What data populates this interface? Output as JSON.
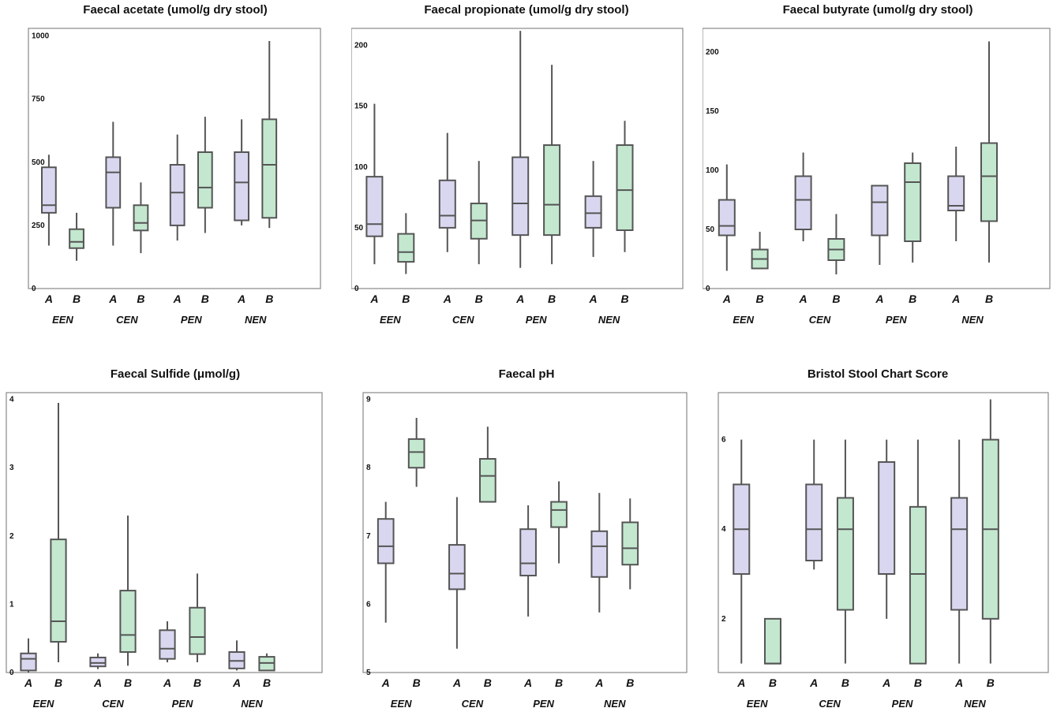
{
  "colors": {
    "A": "#d9d7f0",
    "B": "#c3e8cf",
    "stroke": "#555555",
    "frame": "#888888"
  },
  "chart_data": [
    {
      "type": "box",
      "title": "Faecal acetate (umol/g dry stool)",
      "yticks": [
        "0",
        "250",
        "500",
        "750",
        "1000"
      ],
      "ylim": [
        0,
        1030
      ],
      "groups": [
        "EEN",
        "CEN",
        "PEN",
        "NEN"
      ],
      "subgroups": [
        "A",
        "B"
      ],
      "boxes": [
        {
          "group": "EEN",
          "sub": "A",
          "min": 170,
          "q1": 300,
          "median": 330,
          "q3": 480,
          "max": 530
        },
        {
          "group": "EEN",
          "sub": "B",
          "min": 110,
          "q1": 160,
          "median": 185,
          "q3": 235,
          "max": 300
        },
        {
          "group": "CEN",
          "sub": "A",
          "min": 170,
          "q1": 320,
          "median": 460,
          "q3": 520,
          "max": 660
        },
        {
          "group": "CEN",
          "sub": "B",
          "min": 140,
          "q1": 230,
          "median": 260,
          "q3": 330,
          "max": 420
        },
        {
          "group": "PEN",
          "sub": "A",
          "min": 190,
          "q1": 250,
          "median": 380,
          "q3": 490,
          "max": 610
        },
        {
          "group": "PEN",
          "sub": "B",
          "min": 220,
          "q1": 320,
          "median": 400,
          "q3": 540,
          "max": 680
        },
        {
          "group": "NEN",
          "sub": "A",
          "min": 250,
          "q1": 270,
          "median": 420,
          "q3": 540,
          "max": 670
        },
        {
          "group": "NEN",
          "sub": "B",
          "min": 240,
          "q1": 280,
          "median": 490,
          "q3": 670,
          "max": 980
        }
      ]
    },
    {
      "type": "box",
      "title": "Faecal propionate (umol/g dry stool)",
      "yticks": [
        "0",
        "50",
        "100",
        "150",
        "200"
      ],
      "ylim": [
        0,
        214
      ],
      "groups": [
        "EEN",
        "CEN",
        "PEN",
        "NEN"
      ],
      "subgroups": [
        "A",
        "B"
      ],
      "boxes": [
        {
          "group": "EEN",
          "sub": "A",
          "min": 20,
          "q1": 43,
          "median": 53,
          "q3": 92,
          "max": 152
        },
        {
          "group": "EEN",
          "sub": "B",
          "min": 12,
          "q1": 22,
          "median": 30,
          "q3": 45,
          "max": 62
        },
        {
          "group": "CEN",
          "sub": "A",
          "min": 30,
          "q1": 50,
          "median": 60,
          "q3": 89,
          "max": 128
        },
        {
          "group": "CEN",
          "sub": "B",
          "min": 20,
          "q1": 41,
          "median": 56,
          "q3": 70,
          "max": 105
        },
        {
          "group": "PEN",
          "sub": "A",
          "min": 17,
          "q1": 44,
          "median": 70,
          "q3": 108,
          "max": 212
        },
        {
          "group": "PEN",
          "sub": "B",
          "min": 20,
          "q1": 44,
          "median": 69,
          "q3": 118,
          "max": 184
        },
        {
          "group": "NEN",
          "sub": "A",
          "min": 26,
          "q1": 50,
          "median": 62,
          "q3": 76,
          "max": 105
        },
        {
          "group": "NEN",
          "sub": "B",
          "min": 30,
          "q1": 48,
          "median": 81,
          "q3": 118,
          "max": 138
        }
      ]
    },
    {
      "type": "box",
      "title": "Faecal butyrate (umol/g dry stool)",
      "yticks": [
        "0",
        "50",
        "100",
        "150",
        "200"
      ],
      "ylim": [
        0,
        220
      ],
      "groups": [
        "EEN",
        "CEN",
        "PEN",
        "NEN"
      ],
      "subgroups": [
        "A",
        "B"
      ],
      "boxes": [
        {
          "group": "EEN",
          "sub": "A",
          "min": 15,
          "q1": 45,
          "median": 53,
          "q3": 75,
          "max": 105
        },
        {
          "group": "EEN",
          "sub": "B",
          "min": 17,
          "q1": 17,
          "median": 25,
          "q3": 33,
          "max": 48
        },
        {
          "group": "CEN",
          "sub": "A",
          "min": 40,
          "q1": 50,
          "median": 75,
          "q3": 95,
          "max": 115
        },
        {
          "group": "CEN",
          "sub": "B",
          "min": 12,
          "q1": 24,
          "median": 33,
          "q3": 42,
          "max": 63
        },
        {
          "group": "PEN",
          "sub": "A",
          "min": 20,
          "q1": 45,
          "median": 73,
          "q3": 87,
          "max": 87
        },
        {
          "group": "PEN",
          "sub": "B",
          "min": 22,
          "q1": 40,
          "median": 90,
          "q3": 106,
          "max": 115
        },
        {
          "group": "NEN",
          "sub": "A",
          "min": 40,
          "q1": 66,
          "median": 70,
          "q3": 95,
          "max": 120
        },
        {
          "group": "NEN",
          "sub": "B",
          "min": 22,
          "q1": 57,
          "median": 95,
          "q3": 123,
          "max": 209
        }
      ]
    },
    {
      "type": "box",
      "title": "Faecal Sulfide (μmol/g)",
      "yticks": [
        "0",
        "1",
        "2",
        "3",
        "4"
      ],
      "ylim": [
        0,
        4.1
      ],
      "groups": [
        "EEN",
        "CEN",
        "PEN",
        "NEN"
      ],
      "subgroups": [
        "A",
        "B"
      ],
      "boxes": [
        {
          "group": "EEN",
          "sub": "A",
          "min": 0,
          "q1": 0.03,
          "median": 0.2,
          "q3": 0.28,
          "max": 0.5
        },
        {
          "group": "EEN",
          "sub": "B",
          "min": 0.15,
          "q1": 0.45,
          "median": 0.75,
          "q3": 1.95,
          "max": 3.95
        },
        {
          "group": "CEN",
          "sub": "A",
          "min": 0.05,
          "q1": 0.09,
          "median": 0.14,
          "q3": 0.22,
          "max": 0.28
        },
        {
          "group": "CEN",
          "sub": "B",
          "min": 0.1,
          "q1": 0.3,
          "median": 0.55,
          "q3": 1.2,
          "max": 2.3
        },
        {
          "group": "PEN",
          "sub": "A",
          "min": 0.15,
          "q1": 0.2,
          "median": 0.35,
          "q3": 0.62,
          "max": 0.75
        },
        {
          "group": "PEN",
          "sub": "B",
          "min": 0.15,
          "q1": 0.27,
          "median": 0.52,
          "q3": 0.95,
          "max": 1.45
        },
        {
          "group": "NEN",
          "sub": "A",
          "min": 0.03,
          "q1": 0.06,
          "median": 0.17,
          "q3": 0.3,
          "max": 0.47
        },
        {
          "group": "NEN",
          "sub": "B",
          "min": 0.03,
          "q1": 0.03,
          "median": 0.14,
          "q3": 0.23,
          "max": 0.28
        }
      ]
    },
    {
      "type": "box",
      "title": "Faecal pH",
      "yticks": [
        "5",
        "6",
        "7",
        "8",
        "9"
      ],
      "ylim": [
        5,
        9.1
      ],
      "groups": [
        "EEN",
        "CEN",
        "PEN",
        "NEN"
      ],
      "subgroups": [
        "A",
        "B"
      ],
      "boxes": [
        {
          "group": "EEN",
          "sub": "A",
          "min": 5.73,
          "q1": 6.6,
          "median": 6.85,
          "q3": 7.25,
          "max": 7.5
        },
        {
          "group": "EEN",
          "sub": "B",
          "min": 7.72,
          "q1": 8.0,
          "median": 8.23,
          "q3": 8.42,
          "max": 8.73
        },
        {
          "group": "CEN",
          "sub": "A",
          "min": 5.35,
          "q1": 6.22,
          "median": 6.45,
          "q3": 6.87,
          "max": 7.57
        },
        {
          "group": "CEN",
          "sub": "B",
          "min": 7.5,
          "q1": 7.5,
          "median": 7.88,
          "q3": 8.13,
          "max": 8.6
        },
        {
          "group": "PEN",
          "sub": "A",
          "min": 5.82,
          "q1": 6.42,
          "median": 6.6,
          "q3": 7.1,
          "max": 7.45
        },
        {
          "group": "PEN",
          "sub": "B",
          "min": 6.6,
          "q1": 7.13,
          "median": 7.38,
          "q3": 7.5,
          "max": 7.8
        },
        {
          "group": "NEN",
          "sub": "A",
          "min": 5.88,
          "q1": 6.4,
          "median": 6.85,
          "q3": 7.07,
          "max": 7.63
        },
        {
          "group": "NEN",
          "sub": "B",
          "min": 6.22,
          "q1": 6.58,
          "median": 6.82,
          "q3": 7.2,
          "max": 7.55
        }
      ]
    },
    {
      "type": "box",
      "title": "Bristol Stool Chart Score",
      "yticks": [
        "2",
        "4",
        "6"
      ],
      "ytick_values": [
        2,
        4,
        6
      ],
      "ylim": [
        0.8,
        7.05
      ],
      "groups": [
        "EEN",
        "CEN",
        "PEN",
        "NEN"
      ],
      "subgroups": [
        "A",
        "B"
      ],
      "boxes": [
        {
          "group": "EEN",
          "sub": "A",
          "min": 1,
          "q1": 3,
          "median": 4,
          "q3": 5,
          "max": 6
        },
        {
          "group": "EEN",
          "sub": "B",
          "min": 1,
          "q1": 1,
          "median": 1,
          "q3": 2,
          "max": 2
        },
        {
          "group": "CEN",
          "sub": "A",
          "min": 3.1,
          "q1": 3.3,
          "median": 4,
          "q3": 5,
          "max": 6
        },
        {
          "group": "CEN",
          "sub": "B",
          "min": 1,
          "q1": 2.2,
          "median": 4,
          "q3": 4.7,
          "max": 6
        },
        {
          "group": "PEN",
          "sub": "A",
          "min": 2,
          "q1": 3,
          "median": 3,
          "q3": 5.5,
          "max": 6
        },
        {
          "group": "PEN",
          "sub": "B",
          "min": 1,
          "q1": 1,
          "median": 3,
          "q3": 4.5,
          "max": 6
        },
        {
          "group": "NEN",
          "sub": "A",
          "min": 1,
          "q1": 2.2,
          "median": 4,
          "q3": 4.7,
          "max": 6
        },
        {
          "group": "NEN",
          "sub": "B",
          "min": 1,
          "q1": 2,
          "median": 4,
          "q3": 6,
          "max": 6.9
        }
      ]
    }
  ]
}
